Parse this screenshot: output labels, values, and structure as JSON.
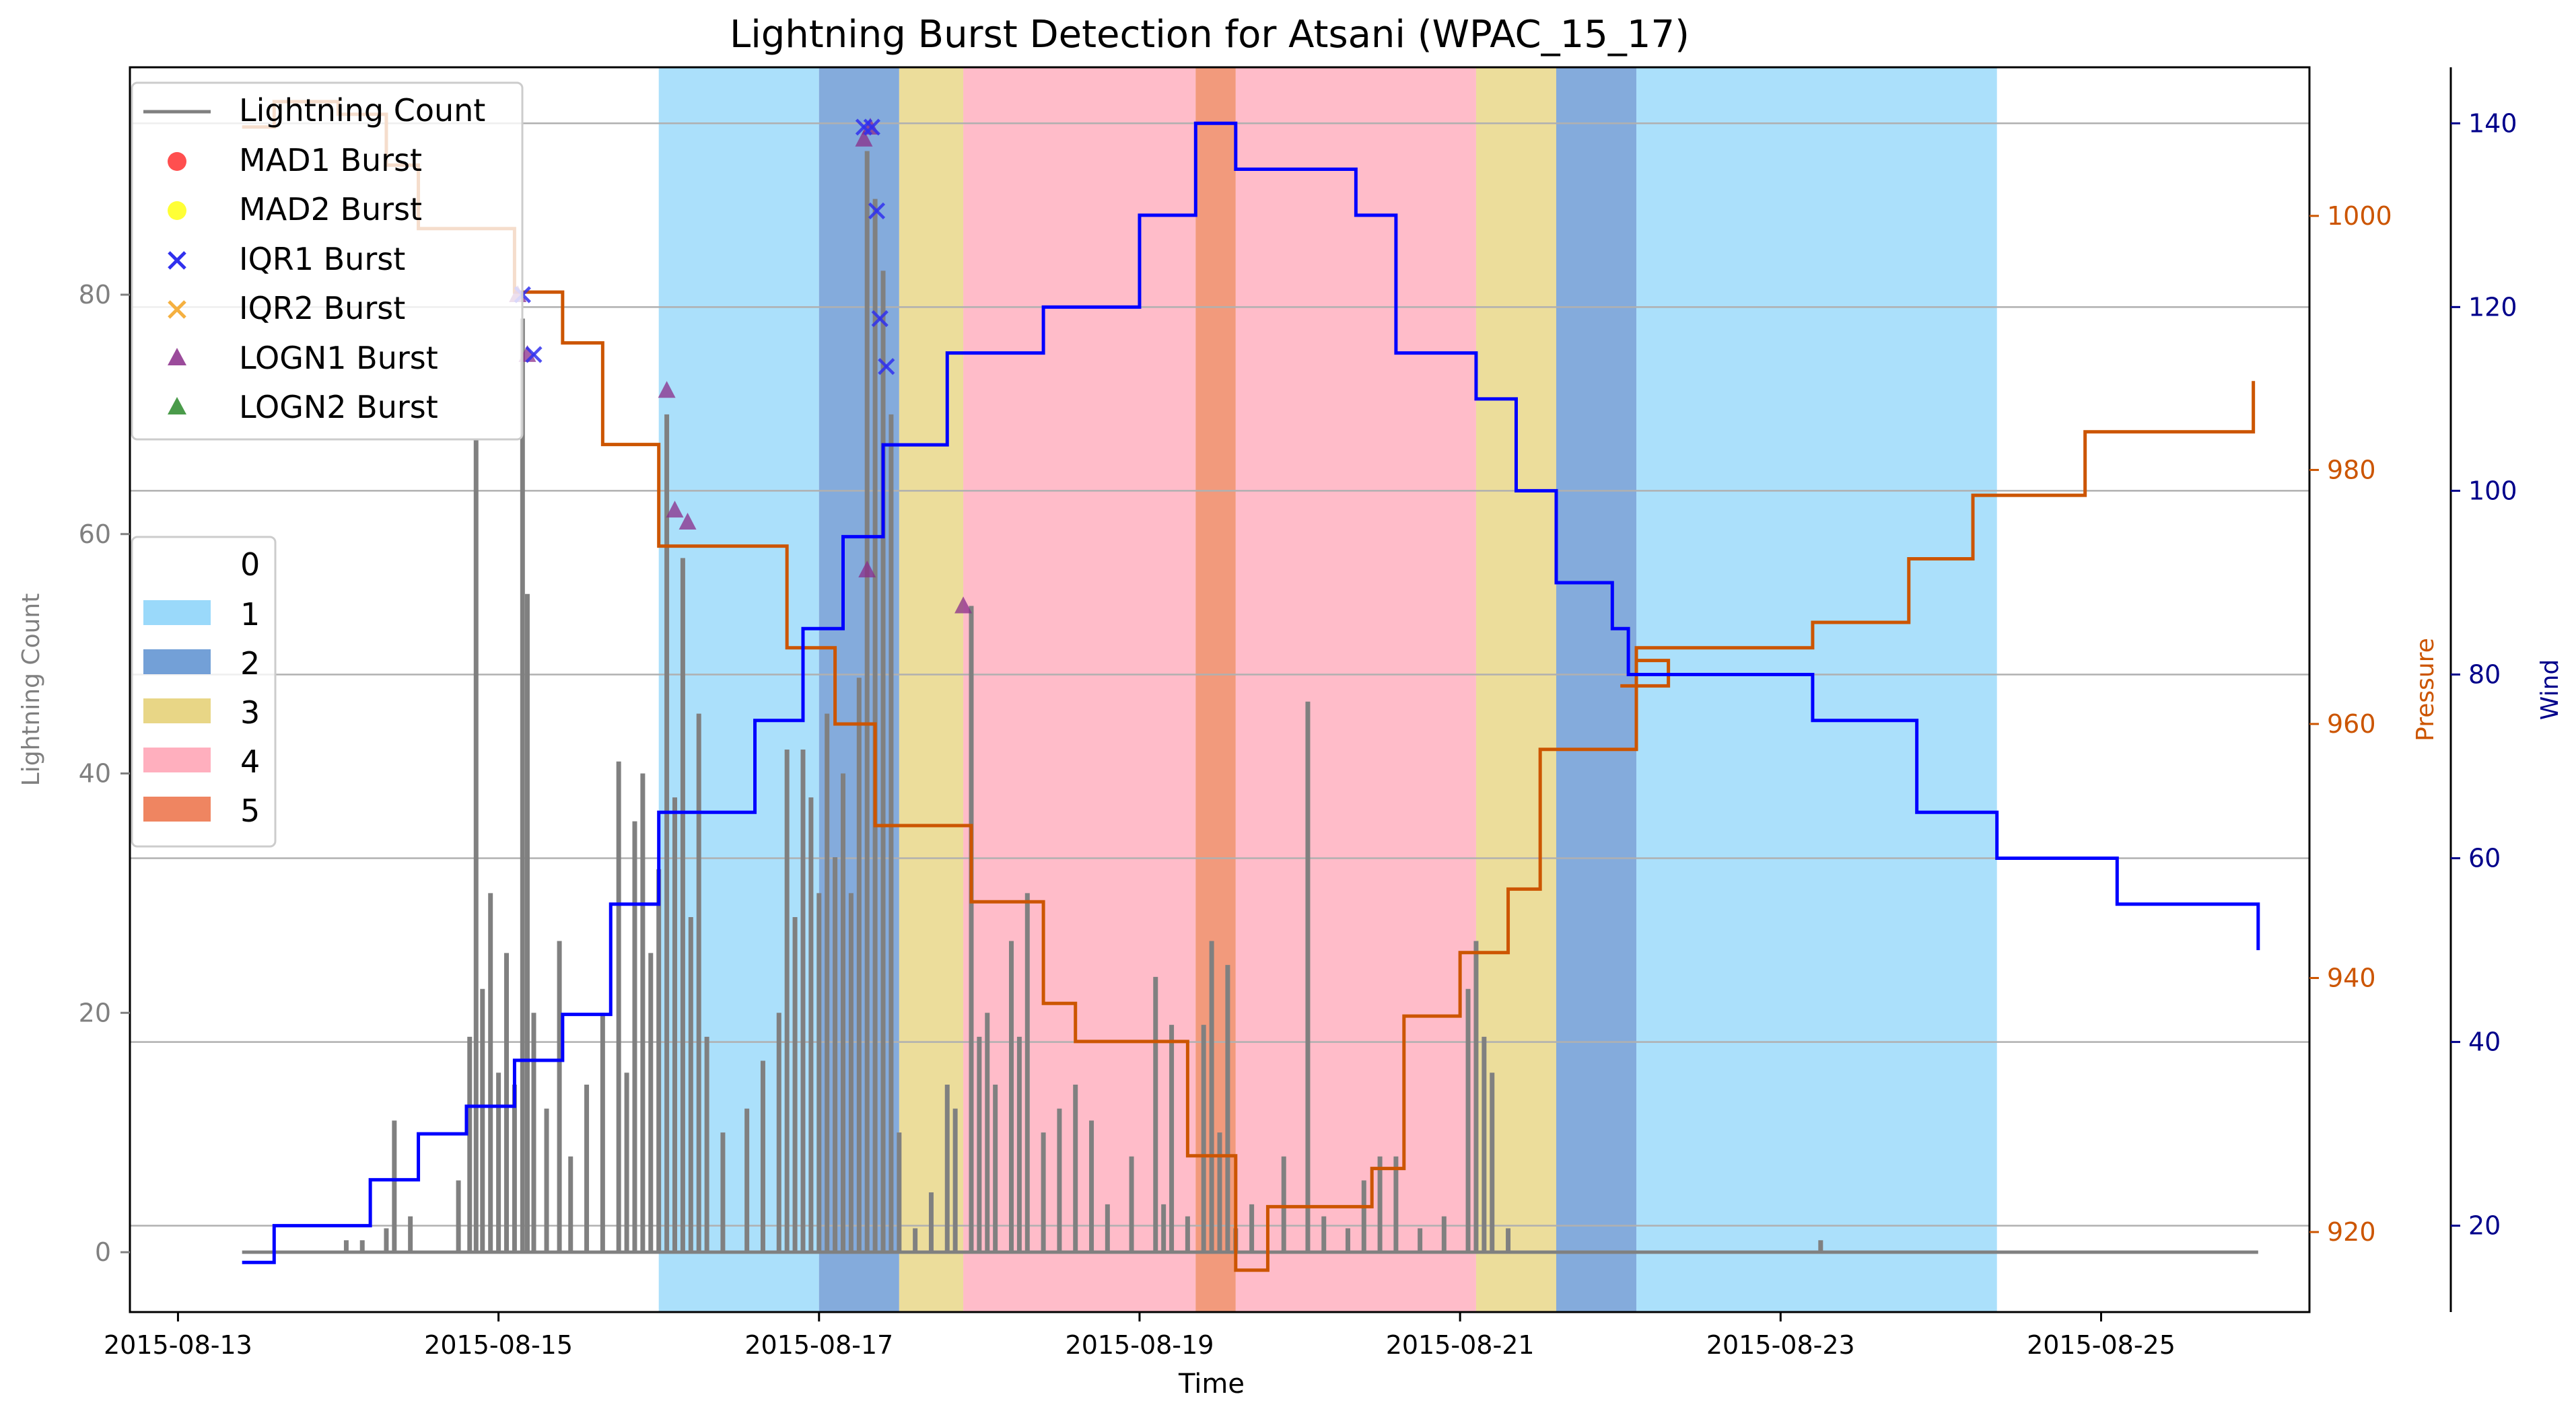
{
  "chart_data": {
    "type": "line",
    "title": "Lightning Burst Detection for Atsani (WPAC_15_17)",
    "xlabel": "Time",
    "ylabel_left": "Lightning Count",
    "ylabel_pressure": "Pressure",
    "ylabel_wind": "Wind",
    "x_range_days": [
      -0.3,
      13.3
    ],
    "x_ticks": [
      {
        "day": 0,
        "label": "2015-08-13"
      },
      {
        "day": 2,
        "label": "2015-08-15"
      },
      {
        "day": 4,
        "label": "2015-08-17"
      },
      {
        "day": 6,
        "label": "2015-08-19"
      },
      {
        "day": 8,
        "label": "2015-08-21"
      },
      {
        "day": 10,
        "label": "2015-08-23"
      },
      {
        "day": 12,
        "label": "2015-08-25"
      }
    ],
    "axes": {
      "lightning": {
        "range": [
          -5,
          99
        ],
        "ticks": [
          0,
          20,
          40,
          60,
          80
        ]
      },
      "pressure": {
        "range": [
          913.7,
          1011.7
        ],
        "ticks": [
          920,
          940,
          960,
          980,
          1000
        ]
      },
      "wind": {
        "range": [
          10.6,
          146.1
        ],
        "ticks": [
          20,
          40,
          60,
          80,
          100,
          120,
          140
        ]
      }
    },
    "grid": "horizontal at wind ticks",
    "colors": {
      "lightning": "#808080",
      "pressure": "#cc5500",
      "wind": "#0000ff",
      "cat1": "#8fd5fa",
      "cat2": "#5b8fd0",
      "cat3": "#e6d279",
      "cat4": "#ffa6b7",
      "cat5": "#ed7850",
      "wind_axis_text": "#00008b",
      "pressure_axis_text": "#cc5500"
    },
    "category_bands": [
      {
        "category": 1,
        "start": 3.0,
        "end": 4.0
      },
      {
        "category": 2,
        "start": 4.0,
        "end": 4.5
      },
      {
        "category": 3,
        "start": 4.5,
        "end": 4.9
      },
      {
        "category": 4,
        "start": 4.9,
        "end": 6.35
      },
      {
        "category": 5,
        "start": 6.35,
        "end": 6.6
      },
      {
        "category": 4,
        "start": 6.6,
        "end": 8.1
      },
      {
        "category": 3,
        "start": 8.1,
        "end": 8.6
      },
      {
        "category": 2,
        "start": 8.6,
        "end": 9.1
      },
      {
        "category": 1,
        "start": 9.1,
        "end": 11.35
      }
    ],
    "wind_series": [
      [
        0.4,
        16
      ],
      [
        0.6,
        20
      ],
      [
        1.2,
        25
      ],
      [
        1.5,
        30
      ],
      [
        1.8,
        33
      ],
      [
        2.1,
        38
      ],
      [
        2.4,
        43
      ],
      [
        2.7,
        55
      ],
      [
        3.0,
        65
      ],
      [
        3.6,
        75
      ],
      [
        3.9,
        85
      ],
      [
        4.15,
        95
      ],
      [
        4.4,
        105
      ],
      [
        4.8,
        115
      ],
      [
        5.4,
        120
      ],
      [
        6.0,
        130
      ],
      [
        6.35,
        140
      ],
      [
        6.6,
        135
      ],
      [
        7.35,
        130
      ],
      [
        7.6,
        115
      ],
      [
        8.1,
        110
      ],
      [
        8.35,
        100
      ],
      [
        8.6,
        90
      ],
      [
        8.95,
        85
      ],
      [
        9.05,
        80
      ],
      [
        10.2,
        75
      ],
      [
        10.85,
        65
      ],
      [
        11.35,
        60
      ],
      [
        12.1,
        55
      ],
      [
        12.98,
        50
      ]
    ],
    "pressure_series": [
      [
        0.4,
        1007
      ],
      [
        0.6,
        1009
      ],
      [
        1.0,
        1008
      ],
      [
        1.3,
        1004
      ],
      [
        1.5,
        999
      ],
      [
        2.1,
        994
      ],
      [
        2.4,
        990
      ],
      [
        2.65,
        982
      ],
      [
        3.0,
        974
      ],
      [
        3.8,
        966
      ],
      [
        4.1,
        960
      ],
      [
        4.35,
        952
      ],
      [
        4.95,
        946
      ],
      [
        5.4,
        938
      ],
      [
        5.6,
        935
      ],
      [
        6.3,
        926
      ],
      [
        6.6,
        917
      ],
      [
        6.8,
        922
      ],
      [
        7.2,
        922
      ],
      [
        7.45,
        925
      ],
      [
        7.65,
        937
      ],
      [
        8.0,
        942
      ],
      [
        8.3,
        947
      ],
      [
        8.5,
        958
      ],
      [
        9.1,
        965
      ],
      [
        9.3,
        963
      ],
      [
        9.0,
        963
      ],
      [
        9.1,
        966
      ],
      [
        10.2,
        968
      ],
      [
        10.8,
        973
      ],
      [
        11.2,
        978
      ],
      [
        11.9,
        983
      ],
      [
        12.95,
        987
      ]
    ],
    "lightning_peaks": [
      [
        1.05,
        1
      ],
      [
        1.15,
        1
      ],
      [
        1.3,
        2
      ],
      [
        1.35,
        11
      ],
      [
        1.45,
        3
      ],
      [
        1.6,
        0
      ],
      [
        1.75,
        6
      ],
      [
        1.82,
        18
      ],
      [
        1.86,
        68
      ],
      [
        1.9,
        22
      ],
      [
        1.95,
        30
      ],
      [
        2.0,
        15
      ],
      [
        2.05,
        25
      ],
      [
        2.1,
        14
      ],
      [
        2.15,
        78
      ],
      [
        2.18,
        55
      ],
      [
        2.22,
        20
      ],
      [
        2.3,
        12
      ],
      [
        2.38,
        26
      ],
      [
        2.45,
        8
      ],
      [
        2.55,
        14
      ],
      [
        2.65,
        20
      ],
      [
        2.75,
        41
      ],
      [
        2.8,
        15
      ],
      [
        2.85,
        36
      ],
      [
        2.9,
        40
      ],
      [
        2.95,
        25
      ],
      [
        3.0,
        32
      ],
      [
        3.05,
        70
      ],
      [
        3.1,
        38
      ],
      [
        3.15,
        58
      ],
      [
        3.2,
        28
      ],
      [
        3.25,
        45
      ],
      [
        3.3,
        18
      ],
      [
        3.4,
        10
      ],
      [
        3.55,
        12
      ],
      [
        3.65,
        16
      ],
      [
        3.75,
        20
      ],
      [
        3.8,
        42
      ],
      [
        3.85,
        28
      ],
      [
        3.9,
        42
      ],
      [
        3.95,
        38
      ],
      [
        4.0,
        30
      ],
      [
        4.05,
        45
      ],
      [
        4.1,
        33
      ],
      [
        4.15,
        40
      ],
      [
        4.2,
        30
      ],
      [
        4.25,
        48
      ],
      [
        4.3,
        92
      ],
      [
        4.35,
        88
      ],
      [
        4.4,
        82
      ],
      [
        4.45,
        70
      ],
      [
        4.5,
        10
      ],
      [
        4.6,
        2
      ],
      [
        4.7,
        5
      ],
      [
        4.8,
        14
      ],
      [
        4.85,
        12
      ],
      [
        4.95,
        54
      ],
      [
        5.0,
        18
      ],
      [
        5.05,
        20
      ],
      [
        5.1,
        14
      ],
      [
        5.2,
        26
      ],
      [
        5.25,
        18
      ],
      [
        5.3,
        30
      ],
      [
        5.4,
        10
      ],
      [
        5.5,
        12
      ],
      [
        5.6,
        14
      ],
      [
        5.7,
        11
      ],
      [
        5.8,
        4
      ],
      [
        5.95,
        8
      ],
      [
        6.1,
        23
      ],
      [
        6.15,
        4
      ],
      [
        6.2,
        19
      ],
      [
        6.3,
        3
      ],
      [
        6.4,
        19
      ],
      [
        6.45,
        26
      ],
      [
        6.5,
        10
      ],
      [
        6.55,
        24
      ],
      [
        6.6,
        2
      ],
      [
        6.7,
        4
      ],
      [
        6.9,
        8
      ],
      [
        7.05,
        46
      ],
      [
        7.15,
        3
      ],
      [
        7.3,
        2
      ],
      [
        7.4,
        6
      ],
      [
        7.5,
        8
      ],
      [
        7.6,
        8
      ],
      [
        7.75,
        2
      ],
      [
        7.9,
        3
      ],
      [
        8.05,
        22
      ],
      [
        8.1,
        26
      ],
      [
        8.15,
        18
      ],
      [
        8.2,
        15
      ],
      [
        8.3,
        2
      ],
      [
        10.25,
        1
      ]
    ],
    "markers": {
      "IQR1": [
        [
          4.28,
          94
        ],
        [
          4.33,
          94
        ],
        [
          4.36,
          87
        ],
        [
          4.38,
          78
        ],
        [
          4.42,
          74
        ],
        [
          2.15,
          80
        ],
        [
          2.22,
          75
        ]
      ],
      "LOGN1": [
        [
          3.05,
          72
        ],
        [
          3.1,
          62
        ],
        [
          3.18,
          61
        ],
        [
          4.28,
          93
        ],
        [
          4.32,
          94
        ],
        [
          4.3,
          57
        ],
        [
          4.9,
          54
        ],
        [
          2.12,
          80
        ],
        [
          2.18,
          75
        ]
      ]
    },
    "legend_main": {
      "placement": "upper-left",
      "entries": [
        "Lightning Count",
        "MAD1 Burst",
        "MAD2 Burst",
        "IQR1 Burst",
        "IQR2 Burst",
        "LOGN1 Burst",
        "LOGN2 Burst"
      ],
      "marker_colors": [
        "#808080",
        "#ff3030",
        "#ffff20",
        "#3030ee",
        "#f5b040",
        "#8a2c8a",
        "#2a8a2a"
      ]
    },
    "legend_category": {
      "placement": "center-left",
      "entries": [
        "0",
        "1",
        "2",
        "3",
        "4",
        "5"
      ]
    }
  }
}
